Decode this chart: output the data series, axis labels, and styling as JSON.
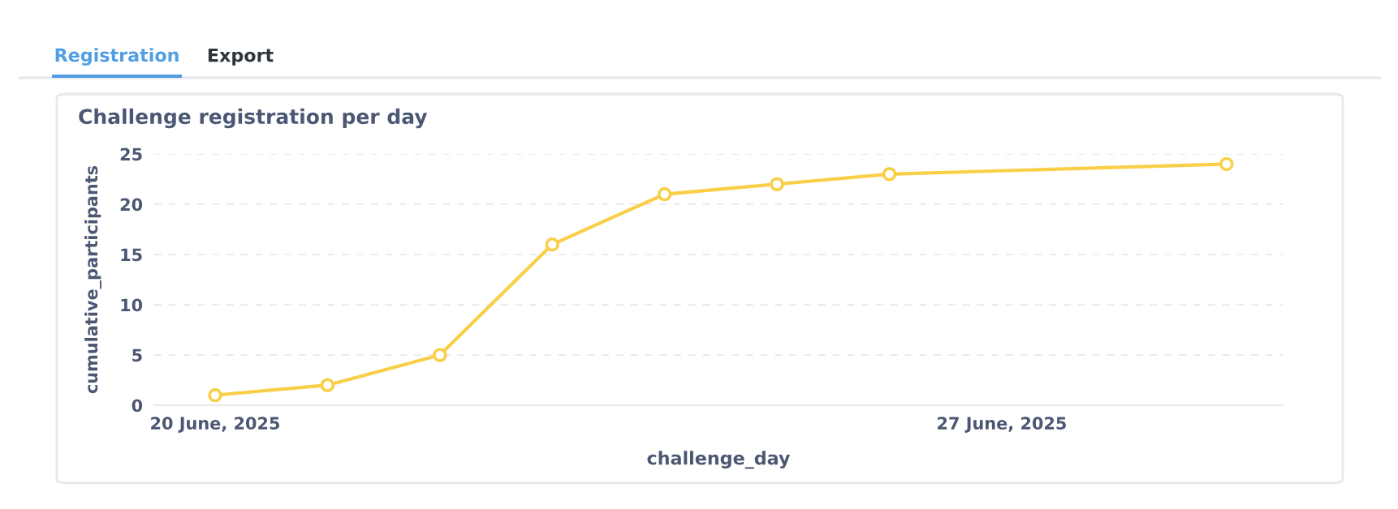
{
  "chart_data": {
    "type": "line",
    "title": "Challenge registration per day",
    "xlabel": "challenge_day",
    "ylabel": "cumulative_participants",
    "annotations": [
      "Registration",
      "Export"
    ],
    "x": [
      "2025-06-20",
      "2025-06-21",
      "2025-06-22",
      "2025-06-23",
      "2025-06-24",
      "2025-06-25",
      "2025-06-26",
      "2025-06-29"
    ],
    "series": [
      {
        "color": "#f9cf48",
        "values": [
          1,
          2,
          5,
          16,
          21,
          22,
          23,
          24
        ]
      }
    ],
    "xlim": [
      "2025-06-19T11:00",
      "2025-06-29T12:00"
    ],
    "xticks": [
      {
        "value": "2025-06-20",
        "label": "20 June, 2025"
      },
      {
        "value": "2025-06-27",
        "label": "27 June, 2025"
      }
    ],
    "ylim": [
      0,
      25
    ],
    "yticks": [
      0,
      5,
      10,
      15,
      20,
      25
    ],
    "grid": "y",
    "marker": "circle",
    "line_style": "solid"
  }
}
